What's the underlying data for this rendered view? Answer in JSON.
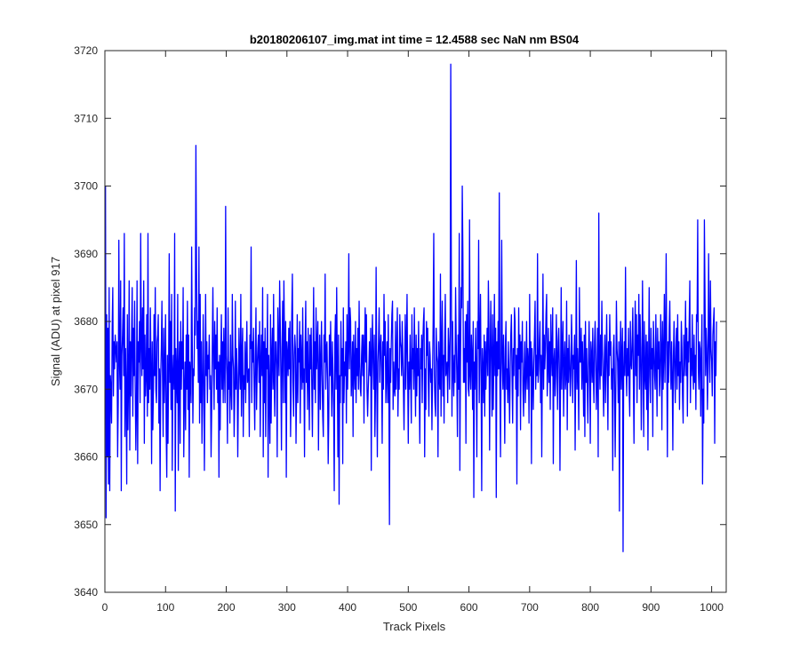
{
  "chart_data": {
    "type": "line",
    "title": "b20180206107_img.mat int time = 12.4588 sec  NaN nm BS04",
    "xlabel": "Track Pixels",
    "ylabel": "Signal (ADU) at pixel 917",
    "xlim": [
      0,
      1024
    ],
    "ylim": [
      3640,
      3720
    ],
    "xticks": [
      0,
      100,
      200,
      300,
      400,
      500,
      600,
      700,
      800,
      900,
      1000
    ],
    "yticks": [
      3640,
      3650,
      3660,
      3670,
      3680,
      3690,
      3700,
      3710,
      3720
    ],
    "grid": false,
    "series": [
      {
        "color": "#0000ff",
        "x_start": 1,
        "x_step": 1,
        "values": [
          3700,
          3651,
          3681,
          3660,
          3679,
          3656,
          3685,
          3655,
          3672,
          3670,
          3665,
          3679,
          3685,
          3669,
          3677,
          3673,
          3678,
          3676,
          3674,
          3677,
          3660,
          3668,
          3692,
          3674,
          3670,
          3686,
          3655,
          3675,
          3678,
          3682,
          3672,
          3693,
          3663,
          3676,
          3670,
          3656,
          3681,
          3664,
          3671,
          3686,
          3661,
          3677,
          3669,
          3678,
          3685,
          3666,
          3679,
          3672,
          3683,
          3671,
          3661,
          3667,
          3686,
          3659,
          3677,
          3674,
          3680,
          3668,
          3693,
          3677,
          3672,
          3682,
          3673,
          3686,
          3662,
          3678,
          3669,
          3672,
          3681,
          3666,
          3693,
          3668,
          3676,
          3670,
          3682,
          3673,
          3659,
          3677,
          3664,
          3670,
          3681,
          3672,
          3685,
          3670,
          3668,
          3677,
          3678,
          3681,
          3665,
          3673,
          3655,
          3672,
          3676,
          3683,
          3672,
          3663,
          3679,
          3668,
          3673,
          3681,
          3664,
          3657,
          3675,
          3662,
          3673,
          3690,
          3671,
          3680,
          3667,
          3684,
          3658,
          3672,
          3675,
          3670,
          3693,
          3652,
          3676,
          3672,
          3668,
          3684,
          3658,
          3673,
          3677,
          3662,
          3680,
          3670,
          3677,
          3673,
          3685,
          3660,
          3669,
          3674,
          3664,
          3678,
          3670,
          3683,
          3667,
          3678,
          3657,
          3674,
          3672,
          3668,
          3691,
          3677,
          3665,
          3673,
          3672,
          3682,
          3678,
          3706,
          3688,
          3676,
          3680,
          3671,
          3691,
          3665,
          3684,
          3668,
          3677,
          3662,
          3669,
          3681,
          3672,
          3658,
          3670,
          3684,
          3672,
          3677,
          3668,
          3675,
          3673,
          3678,
          3670,
          3672,
          3660,
          3667,
          3676,
          3685,
          3674,
          3667,
          3680,
          3673,
          3678,
          3670,
          3682,
          3668,
          3674,
          3657,
          3675,
          3664,
          3674,
          3681,
          3670,
          3677,
          3668,
          3679,
          3673,
          3668,
          3697,
          3675,
          3672,
          3662,
          3682,
          3670,
          3674,
          3665,
          3678,
          3670,
          3667,
          3684,
          3675,
          3673,
          3663,
          3669,
          3683,
          3670,
          3676,
          3672,
          3660,
          3669,
          3679,
          3673,
          3670,
          3684,
          3666,
          3675,
          3679,
          3663,
          3672,
          3670,
          3677,
          3668,
          3674,
          3680,
          3671,
          3672,
          3673,
          3663,
          3678,
          3676,
          3691,
          3668,
          3677,
          3674,
          3679,
          3670,
          3664,
          3675,
          3682,
          3667,
          3673,
          3676,
          3678,
          3671,
          3680,
          3663,
          3674,
          3678,
          3672,
          3685,
          3660,
          3677,
          3668,
          3679,
          3663,
          3676,
          3673,
          3684,
          3657,
          3675,
          3670,
          3662,
          3681,
          3665,
          3675,
          3679,
          3670,
          3684,
          3671,
          3666,
          3677,
          3677,
          3673,
          3660,
          3682,
          3676,
          3672,
          3686,
          3680,
          3672,
          3661,
          3676,
          3683,
          3668,
          3686,
          3678,
          3668,
          3680,
          3657,
          3677,
          3675,
          3672,
          3679,
          3673,
          3680,
          3663,
          3670,
          3681,
          3687,
          3671,
          3666,
          3675,
          3678,
          3676,
          3662,
          3670,
          3681,
          3668,
          3676,
          3674,
          3680,
          3665,
          3678,
          3674,
          3670,
          3682,
          3671,
          3673,
          3660,
          3676,
          3683,
          3671,
          3677,
          3667,
          3679,
          3672,
          3664,
          3678,
          3673,
          3679,
          3670,
          3663,
          3674,
          3685,
          3670,
          3677,
          3668,
          3682,
          3673,
          3676,
          3680,
          3661,
          3672,
          3678,
          3667,
          3674,
          3680,
          3672,
          3666,
          3663,
          3678,
          3674,
          3687,
          3670,
          3676,
          3677,
          3671,
          3659,
          3666,
          3678,
          3672,
          3680,
          3673,
          3666,
          3677,
          3672,
          3667,
          3655,
          3677,
          3681,
          3670,
          3685,
          3674,
          3660,
          3678,
          3653,
          3672,
          3668,
          3680,
          3672,
          3676,
          3659,
          3682,
          3668,
          3674,
          3672,
          3677,
          3665,
          3681,
          3670,
          3676,
          3690,
          3673,
          3682,
          3680,
          3669,
          3672,
          3677,
          3663,
          3678,
          3673,
          3670,
          3680,
          3668,
          3676,
          3672,
          3679,
          3670,
          3683,
          3674,
          3670,
          3669,
          3675,
          3678,
          3672,
          3678,
          3665,
          3676,
          3682,
          3674,
          3681,
          3670,
          3666,
          3670,
          3673,
          3677,
          3672,
          3679,
          3658,
          3675,
          3681,
          3674,
          3670,
          3678,
          3663,
          3670,
          3688,
          3672,
          3660,
          3674,
          3677,
          3682,
          3671,
          3676,
          3678,
          3673,
          3662,
          3677,
          3670,
          3684,
          3675,
          3680,
          3668,
          3672,
          3677,
          3668,
          3681,
          3671,
          3650,
          3676,
          3671,
          3677,
          3681,
          3683,
          3667,
          3674,
          3670,
          3669,
          3680,
          3670,
          3675,
          3682,
          3666,
          3673,
          3670,
          3681,
          3677,
          3676,
          3672,
          3680,
          3675,
          3670,
          3664,
          3673,
          3681,
          3670,
          3677,
          3684,
          3672,
          3662,
          3674,
          3670,
          3678,
          3672,
          3665,
          3681,
          3673,
          3676,
          3670,
          3682,
          3674,
          3666,
          3678,
          3669,
          3676,
          3672,
          3680,
          3670,
          3662,
          3676,
          3673,
          3678,
          3668,
          3677,
          3680,
          3682,
          3660,
          3673,
          3667,
          3680,
          3675,
          3679,
          3671,
          3666,
          3677,
          3675,
          3671,
          3673,
          3664,
          3672,
          3680,
          3693,
          3672,
          3668,
          3666,
          3679,
          3675,
          3674,
          3660,
          3677,
          3672,
          3670,
          3687,
          3666,
          3676,
          3683,
          3669,
          3675,
          3665,
          3677,
          3684,
          3672,
          3673,
          3674,
          3668,
          3679,
          3676,
          3670,
          3678,
          3718,
          3686,
          3666,
          3680,
          3673,
          3669,
          3675,
          3671,
          3685,
          3677,
          3672,
          3663,
          3678,
          3670,
          3693,
          3658,
          3673,
          3685,
          3682,
          3700,
          3690,
          3671,
          3676,
          3671,
          3680,
          3662,
          3681,
          3674,
          3683,
          3670,
          3669,
          3695,
          3672,
          3670,
          3678,
          3675,
          3667,
          3680,
          3654,
          3674,
          3670,
          3679,
          3673,
          3660,
          3680,
          3676,
          3692,
          3668,
          3677,
          3684,
          3672,
          3655,
          3676,
          3673,
          3668,
          3678,
          3666,
          3677,
          3670,
          3675,
          3679,
          3672,
          3686,
          3679,
          3661,
          3675,
          3683,
          3674,
          3666,
          3681,
          3667,
          3674,
          3684,
          3672,
          3679,
          3654,
          3677,
          3672,
          3680,
          3673,
          3699,
          3671,
          3660,
          3675,
          3692,
          3674,
          3670,
          3678,
          3672,
          3662,
          3676,
          3680,
          3670,
          3673,
          3668,
          3677,
          3671,
          3665,
          3673,
          3678,
          3681,
          3672,
          3665,
          3676,
          3672,
          3682,
          3680,
          3670,
          3675,
          3656,
          3676,
          3669,
          3682,
          3673,
          3678,
          3664,
          3677,
          3674,
          3680,
          3670,
          3666,
          3673,
          3677,
          3668,
          3672,
          3680,
          3670,
          3676,
          3674,
          3665,
          3684,
          3672,
          3677,
          3659,
          3676,
          3672,
          3667,
          3674,
          3678,
          3683,
          3670,
          3675,
          3672,
          3690,
          3671,
          3673,
          3677,
          3680,
          3668,
          3675,
          3660,
          3674,
          3687,
          3670,
          3678,
          3673,
          3676,
          3681,
          3684,
          3669,
          3673,
          3679,
          3671,
          3677,
          3667,
          3681,
          3675,
          3672,
          3682,
          3659,
          3674,
          3676,
          3669,
          3672,
          3681,
          3675,
          3667,
          3677,
          3679,
          3673,
          3658,
          3672,
          3685,
          3670,
          3676,
          3680,
          3666,
          3674,
          3677,
          3670,
          3672,
          3683,
          3664,
          3676,
          3671,
          3678,
          3674,
          3669,
          3672,
          3681,
          3676,
          3668,
          3675,
          3673,
          3678,
          3661,
          3673,
          3689,
          3670,
          3676,
          3672,
          3664,
          3685,
          3674,
          3674,
          3679,
          3670,
          3677,
          3673,
          3666,
          3678,
          3663,
          3680,
          3671,
          3676,
          3670,
          3665,
          3674,
          3680,
          3673,
          3662,
          3677,
          3675,
          3671,
          3679,
          3672,
          3668,
          3677,
          3680,
          3674,
          3667,
          3672,
          3679,
          3660,
          3696,
          3674,
          3670,
          3678,
          3672,
          3683,
          3676,
          3671,
          3666,
          3674,
          3678,
          3668,
          3675,
          3681,
          3672,
          3664,
          3677,
          3672,
          3681,
          3675,
          3677,
          3670,
          3673,
          3658,
          3676,
          3678,
          3671,
          3660,
          3670,
          3683,
          3676,
          3674,
          3668,
          3677,
          3652,
          3674,
          3680,
          3670,
          3675,
          3679,
          3646,
          3673,
          3677,
          3672,
          3688,
          3674,
          3669,
          3676,
          3672,
          3679,
          3670,
          3666,
          3680,
          3674,
          3673,
          3677,
          3682,
          3671,
          3662,
          3675,
          3683,
          3672,
          3681,
          3668,
          3678,
          3675,
          3684,
          3670,
          3681,
          3676,
          3664,
          3672,
          3686,
          3675,
          3663,
          3680,
          3672,
          3670,
          3678,
          3667,
          3677,
          3661,
          3674,
          3685,
          3672,
          3668,
          3679,
          3673,
          3676,
          3663,
          3680,
          3676,
          3672,
          3670,
          3681,
          3674,
          3666,
          3679,
          3673,
          3677,
          3669,
          3672,
          3681,
          3676,
          3664,
          3680,
          3670,
          3675,
          3684,
          3671,
          3678,
          3690,
          3675,
          3660,
          3677,
          3671,
          3679,
          3683,
          3674,
          3670,
          3677,
          3672,
          3661,
          3675,
          3680,
          3673,
          3668,
          3676,
          3679,
          3670,
          3681,
          3672,
          3677,
          3667,
          3674,
          3671,
          3680,
          3676,
          3669,
          3665,
          3678,
          3672,
          3675,
          3683,
          3672,
          3679,
          3666,
          3677,
          3674,
          3680,
          3686,
          3668,
          3676,
          3672,
          3681,
          3673,
          3670,
          3678,
          3671,
          3675,
          3667,
          3681,
          3680,
          3695,
          3673,
          3670,
          3677,
          3676,
          3666,
          3674,
          3681,
          3656,
          3670,
          3665,
          3695,
          3684,
          3672,
          3679,
          3676,
          3667,
          3673,
          3690,
          3677,
          3671,
          3686,
          3676,
          3674,
          3669,
          3678,
          3680,
          3682,
          3662,
          3677,
          3672,
          3680
        ]
      }
    ]
  }
}
